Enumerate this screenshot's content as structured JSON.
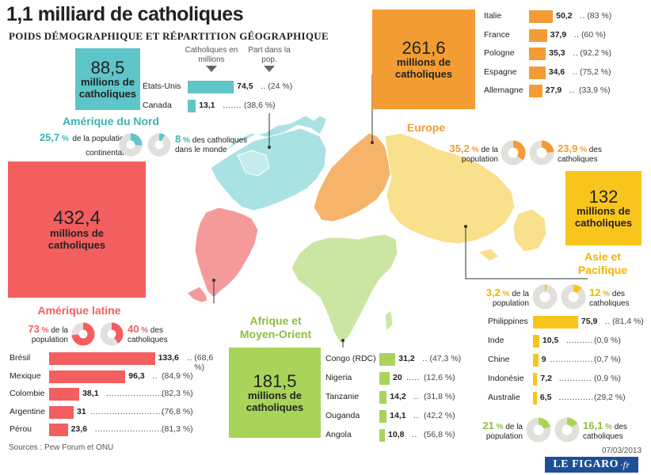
{
  "title": "1,1 milliard de catholiques",
  "subtitle": "POIDS DÉMOGRAPHIQUE ET RÉPARTITION GÉOGRAPHIQUE",
  "column_headers": {
    "catholics": "Catholiques en millions",
    "share": "Part dans la pop."
  },
  "common": {
    "millions_label": "millions de catholiques",
    "population_label": "de la population",
    "catholics_label": "des catholiques",
    "continental_label": "de la population continentale",
    "world_label": "des catholiques dans le monde"
  },
  "footer": {
    "source": "Sources : Pew Forum et ONU",
    "date": "07/03/2013",
    "logo": "LE FIGARO",
    "logo_suffix": "·fr"
  },
  "colors": {
    "north_america": "#5ec5c8",
    "latin_america": "#f35e5e",
    "europe": "#f39c33",
    "asia": "#f8c51c",
    "africa": "#a8d45a",
    "donut_bg": "#e2e0dc"
  },
  "chart_data": [
    {
      "type": "bar",
      "region": "Amérique du Nord",
      "total": "88,5",
      "total_value": 88.5,
      "pop_share": "25,7",
      "pop_share_value": 25.7,
      "world_share": "8",
      "world_share_value": 8,
      "categories": [
        "États-Unis",
        "Canada"
      ],
      "values": [
        74.5,
        13.1
      ],
      "value_labels": [
        "74,5",
        "13,1"
      ],
      "shares": [
        "(24 %)",
        "(38,6 %)"
      ]
    },
    {
      "type": "bar",
      "region": "Amérique latine",
      "total": "432,4",
      "total_value": 432.4,
      "pop_share": "73",
      "pop_share_value": 73,
      "world_share": "40",
      "world_share_value": 40,
      "categories": [
        "Brésil",
        "Mexique",
        "Colombie",
        "Argentine",
        "Pérou"
      ],
      "values": [
        133.6,
        96.3,
        38.1,
        31,
        23.6
      ],
      "value_labels": [
        "133,6",
        "96,3",
        "38,1",
        "31",
        "23,6"
      ],
      "shares": [
        "(68,6 %)",
        "(84,9 %)",
        "(82,3 %)",
        "(76,8 %)",
        "(81,3 %)"
      ]
    },
    {
      "type": "bar",
      "region": "Europe",
      "total": "261,6",
      "total_value": 261.6,
      "pop_share": "35,2",
      "pop_share_value": 35.2,
      "world_share": "23,9",
      "world_share_value": 23.9,
      "categories": [
        "Italie",
        "France",
        "Pologne",
        "Espagne",
        "Allemagne"
      ],
      "values": [
        50.2,
        37.9,
        35.3,
        34.6,
        27.9
      ],
      "value_labels": [
        "50,2",
        "37,9",
        "35,3",
        "34,6",
        "27,9"
      ],
      "shares": [
        "(83 %)",
        "(60 %)",
        "(92,2 %)",
        "(75,2 %)",
        "(33,9 %)"
      ]
    },
    {
      "type": "bar",
      "region": "Asie et Pacifique",
      "total": "132",
      "total_value": 132,
      "pop_share": "3,2",
      "pop_share_value": 3.2,
      "world_share": "12",
      "world_share_value": 12,
      "categories": [
        "Philippines",
        "Inde",
        "Chine",
        "Indonésie",
        "Australie"
      ],
      "values": [
        75.9,
        10.5,
        9,
        7.2,
        6.5
      ],
      "value_labels": [
        "75,9",
        "10,5",
        "9",
        "7,2",
        "6,5"
      ],
      "shares": [
        "(81,4 %)",
        "(0,9 %)",
        "(0,7 %)",
        "(0,9 %)",
        "(29,2 %)"
      ]
    },
    {
      "type": "bar",
      "region": "Afrique et Moyen-Orient",
      "total": "181,5",
      "total_value": 181.5,
      "pop_share": "21",
      "pop_share_value": 21,
      "world_share": "16,1",
      "world_share_value": 16.1,
      "categories": [
        "Congo (RDC)",
        "Nigeria",
        "Tanzanie",
        "Ouganda",
        "Angola"
      ],
      "values": [
        31.2,
        20,
        14.2,
        14.1,
        10.8
      ],
      "value_labels": [
        "31,2",
        "20",
        "14,2",
        "14,1",
        "10,8"
      ],
      "shares": [
        "(47,3 %)",
        "(12,6 %)",
        "(31,8 %)",
        "(42,2 %)",
        "(56,8 %)"
      ]
    }
  ]
}
